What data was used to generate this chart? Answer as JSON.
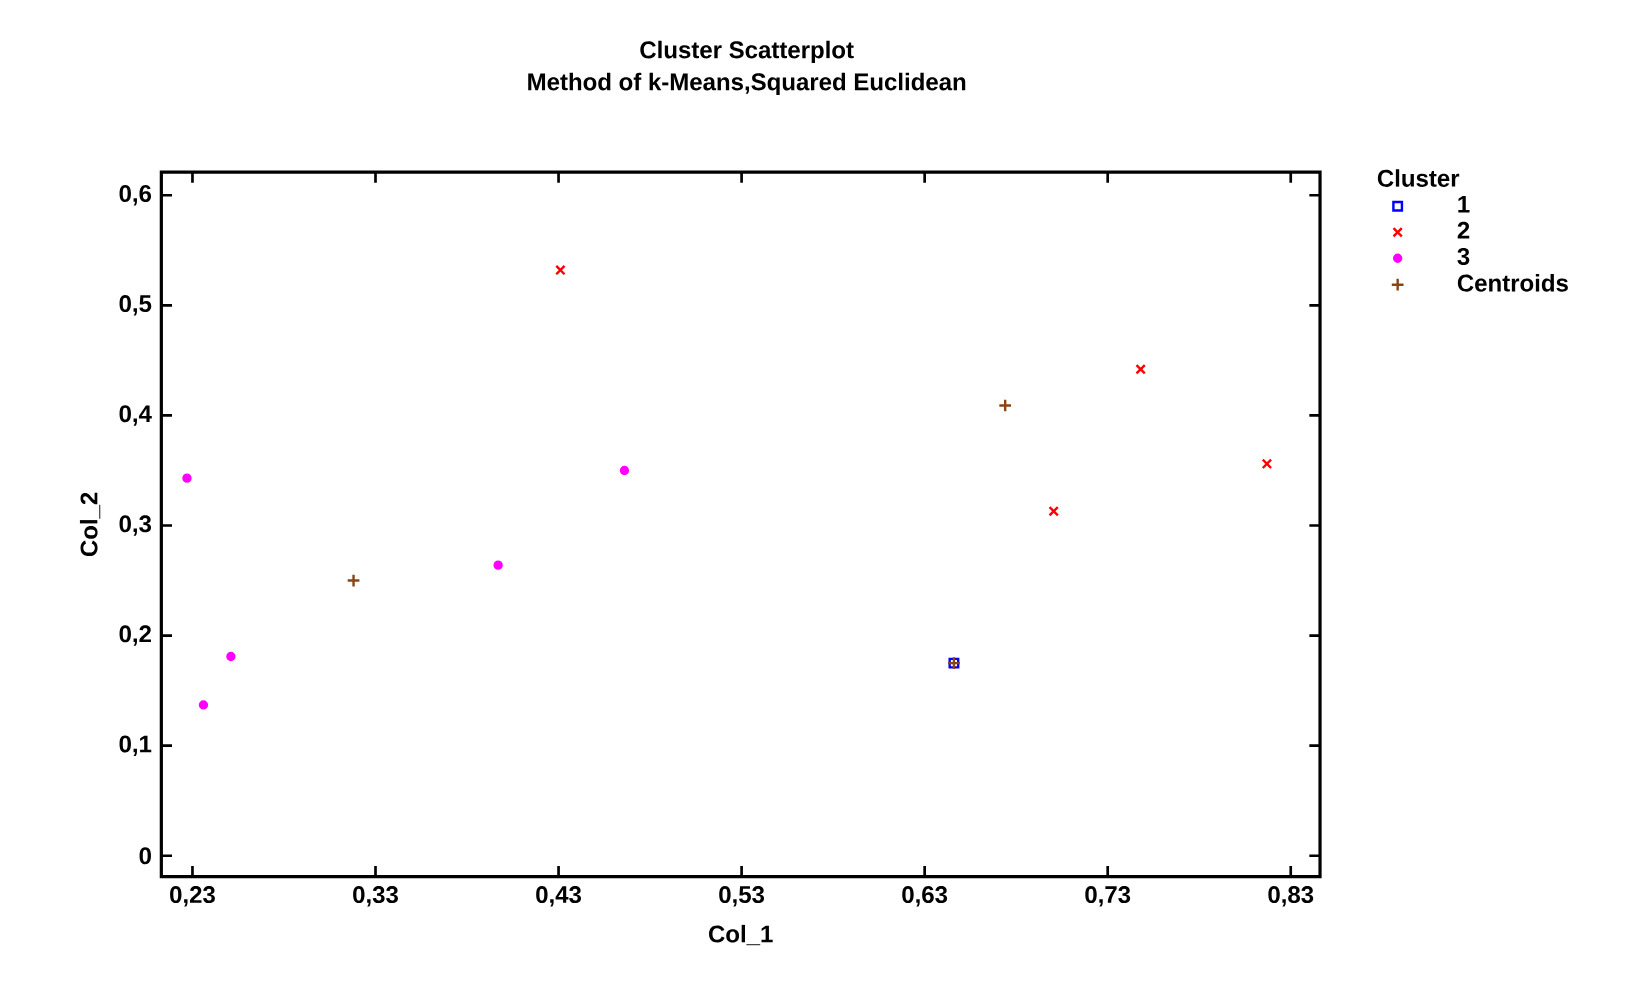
{
  "chart_data": {
    "type": "scatter",
    "title": "Cluster Scatterplot",
    "subtitle": "Method of k-Means,Squared Euclidean",
    "xlabel": "Col_1",
    "ylabel": "Col_2",
    "legend_title": "Cluster",
    "legend": "top right",
    "grid": false,
    "xlim": [
      0.213,
      0.846
    ],
    "ylim": [
      -0.019,
      0.621
    ],
    "xticks": [
      {
        "value": 0.23,
        "label": "0,23"
      },
      {
        "value": 0.33,
        "label": "0,33"
      },
      {
        "value": 0.43,
        "label": "0,43"
      },
      {
        "value": 0.53,
        "label": "0,53"
      },
      {
        "value": 0.63,
        "label": "0,63"
      },
      {
        "value": 0.73,
        "label": "0,73"
      },
      {
        "value": 0.83,
        "label": "0,83"
      }
    ],
    "yticks": [
      0,
      {
        "value": 0.1,
        "label": "0,1"
      },
      {
        "value": 0.2,
        "label": "0,2"
      },
      {
        "value": 0.3,
        "label": "0,3"
      },
      {
        "value": 0.4,
        "label": "0,4"
      },
      {
        "value": 0.5,
        "label": "0,5"
      },
      {
        "value": 0.6,
        "label": "0,6"
      }
    ],
    "series": [
      {
        "name": "1",
        "color": "#0000ff",
        "marker": "square",
        "x": [
          0.646
        ],
        "values": [
          0.175
        ]
      },
      {
        "name": "2",
        "color": "#ff0000",
        "marker": "cross",
        "x": [
          0.431,
          0.7005,
          0.748,
          0.817
        ],
        "values": [
          0.532,
          0.313,
          0.442,
          0.356
        ]
      },
      {
        "name": "3",
        "color": "#ff00ff",
        "marker": "circle",
        "x": [
          0.227,
          0.236,
          0.251,
          0.397,
          0.466
        ],
        "values": [
          0.343,
          0.137,
          0.181,
          0.264,
          0.35
        ]
      },
      {
        "name": "Centroids",
        "color": "#8b4513",
        "x": [
          0.646,
          0.674,
          0.318
        ],
        "values": [
          0.175,
          0.409,
          0.25
        ]
      }
    ]
  }
}
